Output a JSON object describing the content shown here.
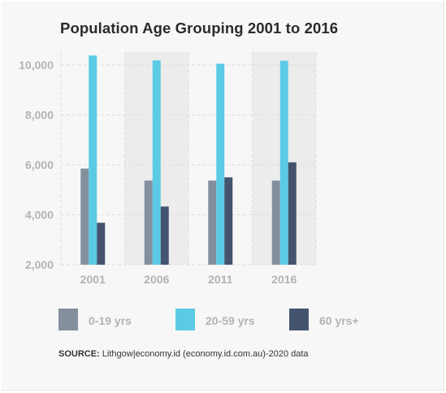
{
  "chart_data": {
    "type": "bar",
    "title": "Population Age Grouping 2001 to 2016",
    "categories": [
      "2001",
      "2006",
      "2011",
      "2016"
    ],
    "series": [
      {
        "name": "0-19 yrs",
        "values": [
          5850,
          5370,
          5370,
          5370
        ]
      },
      {
        "name": "20-59 yrs",
        "values": [
          10380,
          10180,
          10050,
          10170
        ]
      },
      {
        "name": "60 yrs+",
        "values": [
          3680,
          4330,
          5500,
          6100
        ]
      }
    ],
    "yticks": [
      "2,000",
      "4,000",
      "6,000",
      "8,000",
      "10,000"
    ],
    "ylim": [
      2000,
      10700
    ],
    "grid": true,
    "legend": "bottom"
  },
  "colors": {
    "series": [
      "#848f9e",
      "#5bcbe5",
      "#44546f"
    ],
    "band": "#ececec",
    "grid": "#dddddd",
    "tick_label": "#b3b3b3"
  },
  "source": {
    "label": "SOURCE:",
    "text": "Lithgow|economy.id (economy.id.com.au)-2020 data"
  }
}
